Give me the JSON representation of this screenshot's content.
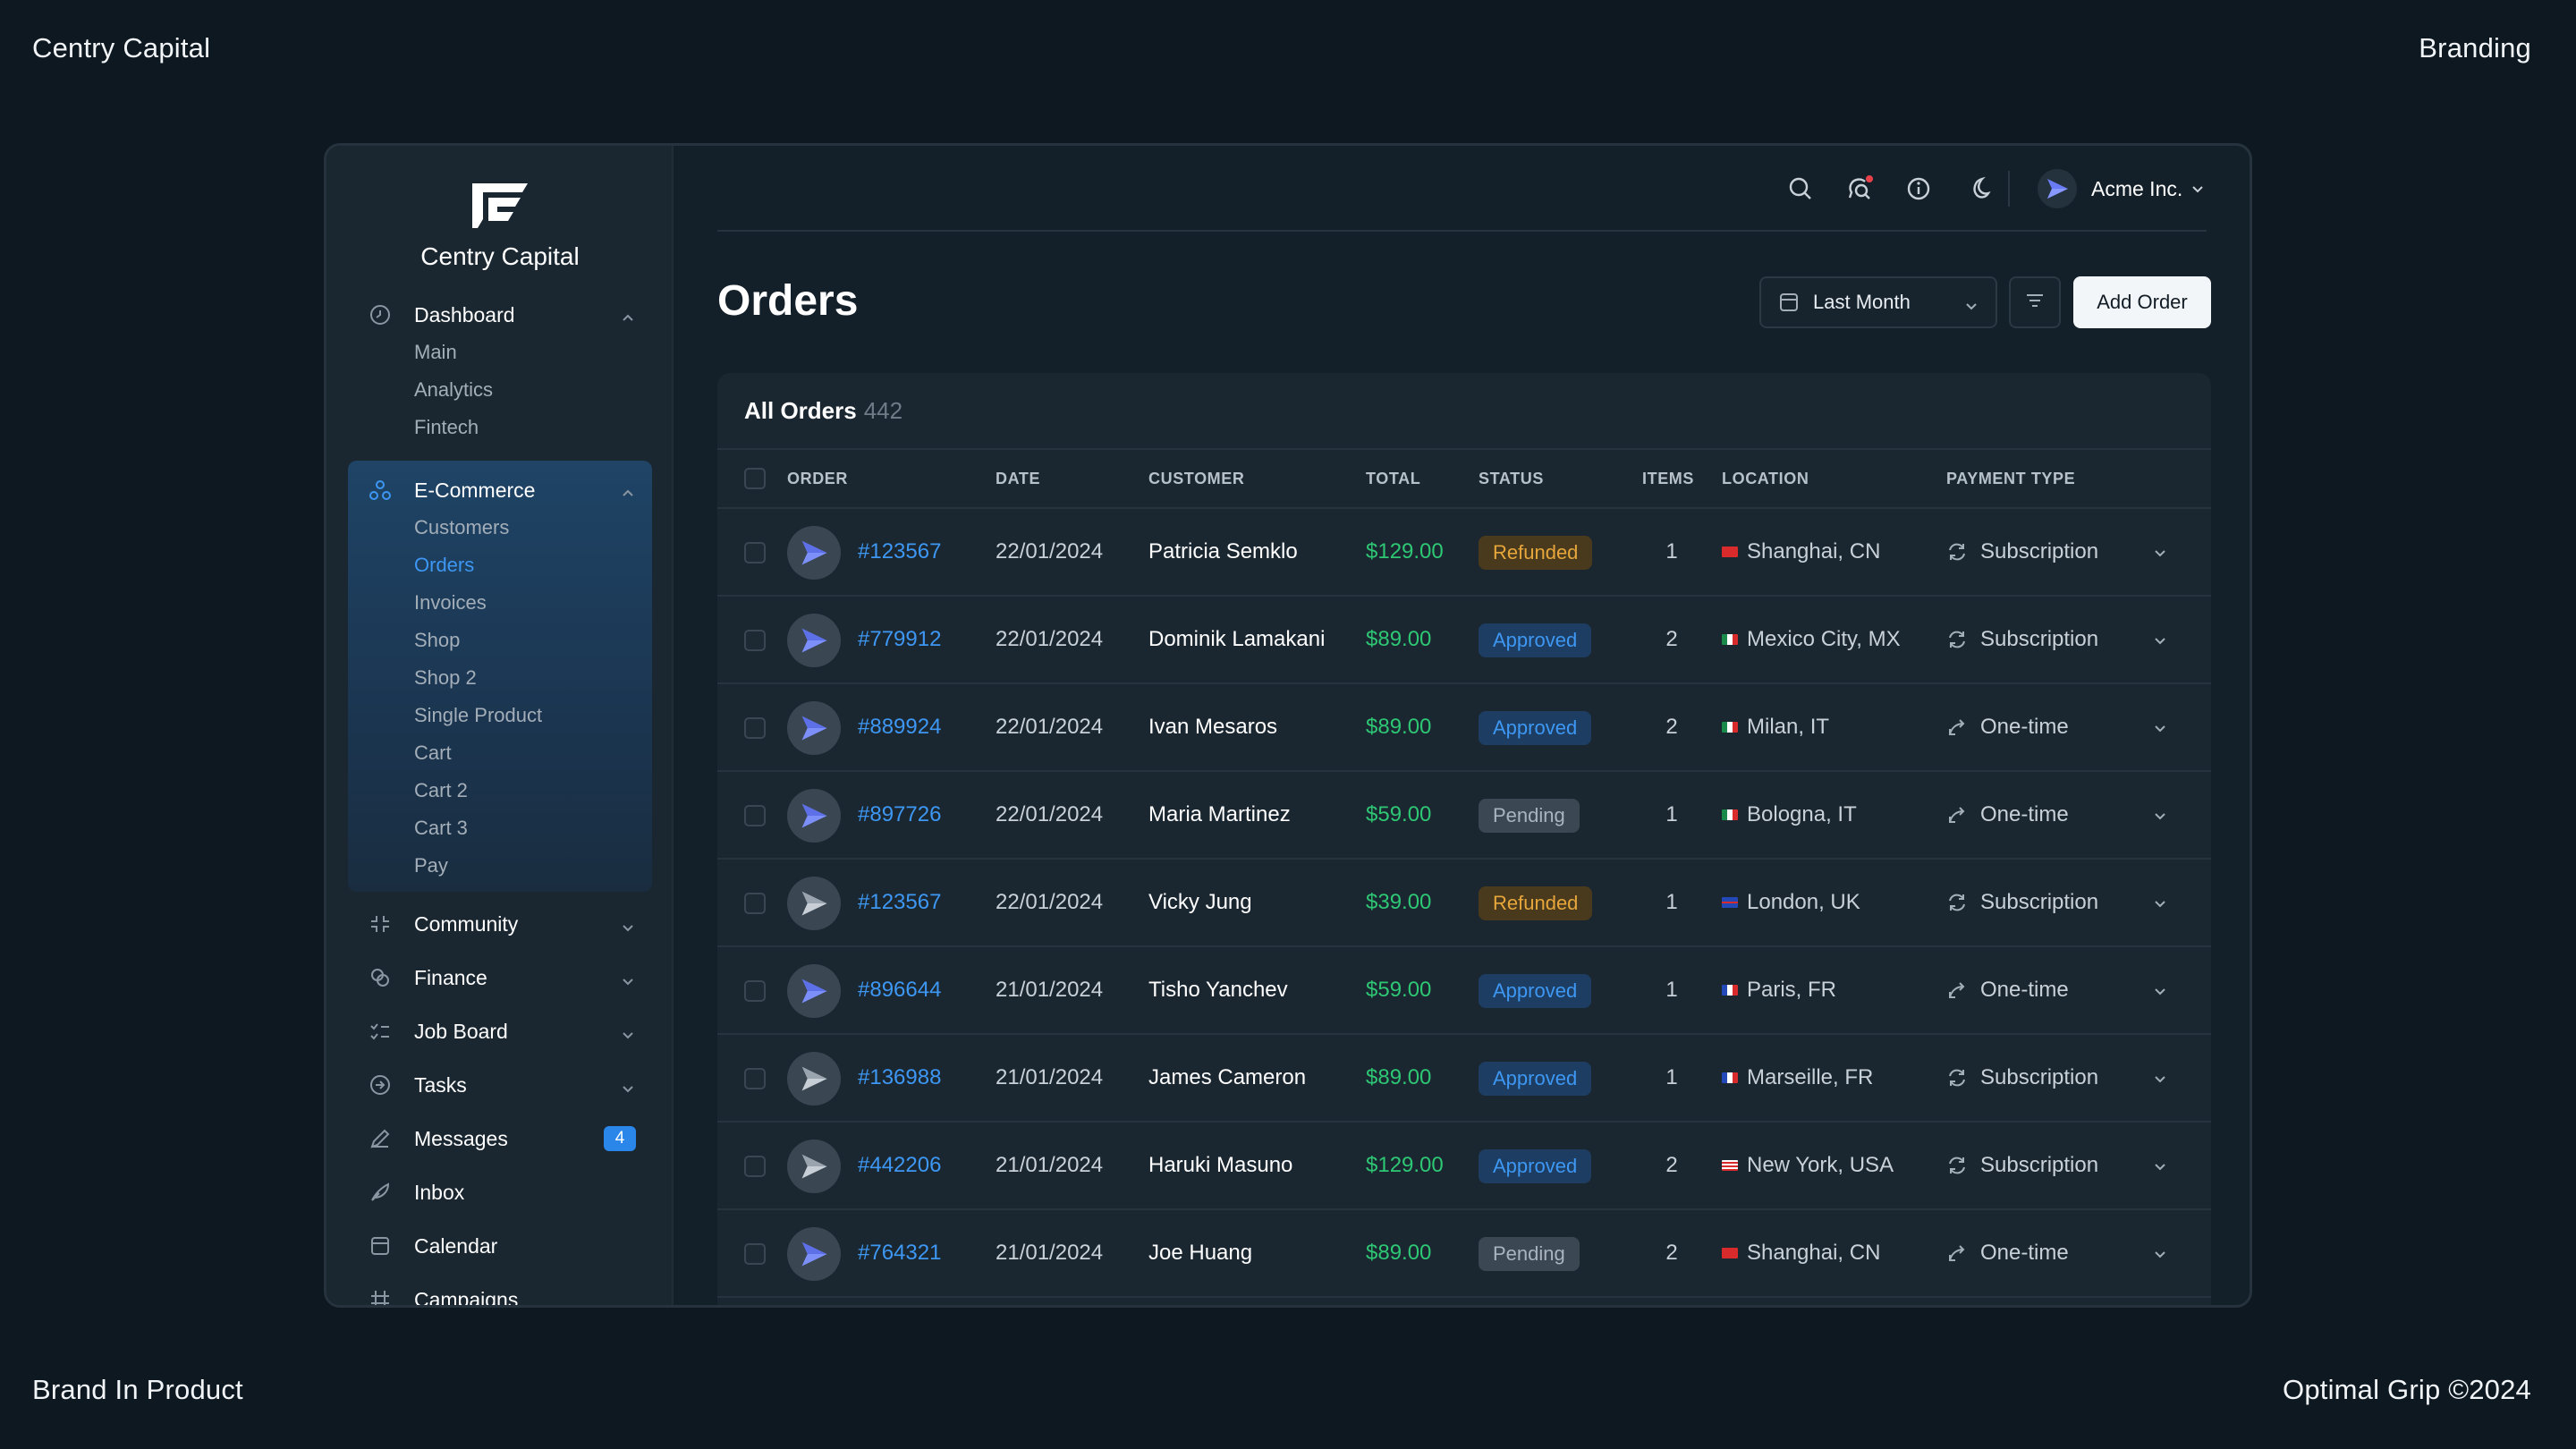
{
  "corners": {
    "top_left": "Centry Capital",
    "top_right": "Branding",
    "bottom_left": "Brand In Product",
    "bottom_right": "Optimal Grip ©2024"
  },
  "brand": {
    "name": "Centry Capital",
    "logo_icon": "centry-logo"
  },
  "sidebar": {
    "groups": [
      {
        "label": "Dashboard",
        "icon": "clock-icon",
        "expanded": true,
        "items": [
          "Main",
          "Analytics",
          "Fintech"
        ]
      },
      {
        "label": "E-Commerce",
        "icon": "nodes-icon",
        "expanded": true,
        "active": true,
        "items": [
          "Customers",
          "Orders",
          "Invoices",
          "Shop",
          "Shop 2",
          "Single Product",
          "Cart",
          "Cart 2",
          "Cart 3",
          "Pay"
        ],
        "active_item": "Orders"
      }
    ],
    "singles": [
      {
        "label": "Community",
        "icon": "community-icon"
      },
      {
        "label": "Finance",
        "icon": "finance-icon"
      },
      {
        "label": "Job Board",
        "icon": "checklist-icon"
      },
      {
        "label": "Tasks",
        "icon": "tasks-icon"
      },
      {
        "label": "Messages",
        "icon": "pen-icon",
        "badge": "4"
      },
      {
        "label": "Inbox",
        "icon": "feather-icon"
      },
      {
        "label": "Calendar",
        "icon": "calendar-icon"
      },
      {
        "label": "Campaigns",
        "icon": "megaphone-icon"
      }
    ]
  },
  "topbar": {
    "icons": [
      "search-icon",
      "chat-search-icon",
      "info-icon",
      "moon-icon"
    ],
    "account": {
      "name": "Acme Inc.",
      "avatar_icon": "paper-plane-icon"
    }
  },
  "page": {
    "title": "Orders",
    "period_label": "Last Month",
    "add_label": "Add Order"
  },
  "table": {
    "title": "All Orders",
    "count": "442",
    "headers": {
      "order": "ORDER",
      "date": "DATE",
      "customer": "CUSTOMER",
      "total": "TOTAL",
      "status": "STATUS",
      "items": "ITEMS",
      "location": "LOCATION",
      "payment": "PAYMENT TYPE"
    },
    "rows": [
      {
        "order": "#123567",
        "date": "22/01/2024",
        "customer": "Patricia Semklo",
        "total": "$129.00",
        "status": "Refunded",
        "items": "1",
        "location": "Shanghai, CN",
        "flag": "cn",
        "payment": "Subscription",
        "avatar": "blue"
      },
      {
        "order": "#779912",
        "date": "22/01/2024",
        "customer": "Dominik Lamakani",
        "total": "$89.00",
        "status": "Approved",
        "items": "2",
        "location": "Mexico City, MX",
        "flag": "mx",
        "payment": "Subscription",
        "avatar": "blue"
      },
      {
        "order": "#889924",
        "date": "22/01/2024",
        "customer": "Ivan Mesaros",
        "total": "$89.00",
        "status": "Approved",
        "items": "2",
        "location": "Milan, IT",
        "flag": "it",
        "payment": "One-time",
        "avatar": "blue"
      },
      {
        "order": "#897726",
        "date": "22/01/2024",
        "customer": "Maria Martinez",
        "total": "$59.00",
        "status": "Pending",
        "items": "1",
        "location": "Bologna, IT",
        "flag": "it",
        "payment": "One-time",
        "avatar": "blue"
      },
      {
        "order": "#123567",
        "date": "22/01/2024",
        "customer": "Vicky Jung",
        "total": "$39.00",
        "status": "Refunded",
        "items": "1",
        "location": "London, UK",
        "flag": "uk",
        "payment": "Subscription",
        "avatar": "gray"
      },
      {
        "order": "#896644",
        "date": "21/01/2024",
        "customer": "Tisho Yanchev",
        "total": "$59.00",
        "status": "Approved",
        "items": "1",
        "location": "Paris, FR",
        "flag": "fr",
        "payment": "One-time",
        "avatar": "blue"
      },
      {
        "order": "#136988",
        "date": "21/01/2024",
        "customer": "James Cameron",
        "total": "$89.00",
        "status": "Approved",
        "items": "1",
        "location": "Marseille, FR",
        "flag": "fr",
        "payment": "Subscription",
        "avatar": "gray"
      },
      {
        "order": "#442206",
        "date": "21/01/2024",
        "customer": "Haruki Masuno",
        "total": "$129.00",
        "status": "Approved",
        "items": "2",
        "location": "New York, USA",
        "flag": "us",
        "payment": "Subscription",
        "avatar": "gray"
      },
      {
        "order": "#764321",
        "date": "21/01/2024",
        "customer": "Joe Huang",
        "total": "$89.00",
        "status": "Pending",
        "items": "2",
        "location": "Shanghai, CN",
        "flag": "cn",
        "payment": "One-time",
        "avatar": "blue"
      }
    ]
  },
  "colors": {
    "background": "#0d1821",
    "accent": "#3d97f3",
    "money": "#2ec774",
    "refunded": "#e6a63b",
    "pending": "#a9b4be"
  }
}
